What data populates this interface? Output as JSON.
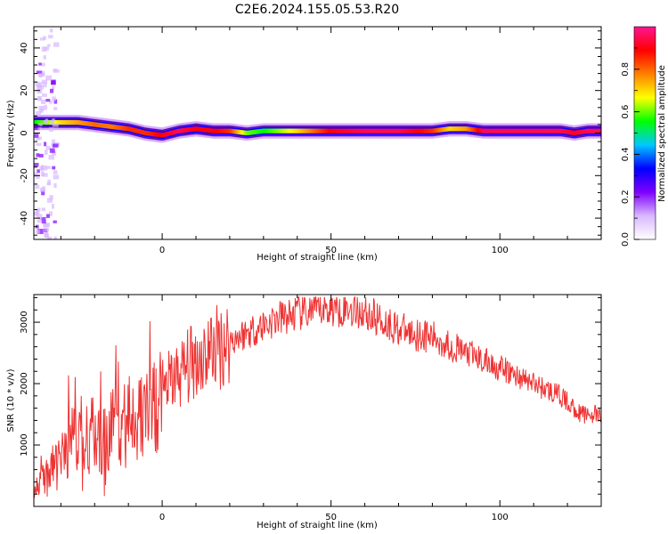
{
  "title": "C2E6.2024.155.05.53.R20",
  "colorbar": {
    "label": "Normalized spectral amplitude",
    "ticks": [
      "0.0",
      "0.2",
      "0.4",
      "0.6",
      "0.8"
    ],
    "tick_values": [
      0.0,
      0.2,
      0.4,
      0.6,
      0.8
    ],
    "range": [
      0,
      1
    ],
    "colors": [
      "#ffffff",
      "#d9b8ff",
      "#7f00ff",
      "#0000ff",
      "#00c8ff",
      "#00ff00",
      "#ffff00",
      "#ff7f00",
      "#ff0000",
      "#ff1493"
    ]
  },
  "chart_data": [
    {
      "type": "heatmap",
      "xlabel": "Height of straight line (km)",
      "ylabel": "Frequency (Hz)",
      "xlim": [
        -38,
        130
      ],
      "ylim": [
        -50,
        50
      ],
      "xticks": [
        0,
        50,
        100
      ],
      "yticks": [
        -40,
        -20,
        0,
        20,
        40
      ],
      "ridge": {
        "x": [
          -38,
          -30,
          -25,
          -20,
          -15,
          -10,
          -5,
          0,
          5,
          10,
          15,
          20,
          25,
          30,
          40,
          50,
          60,
          70,
          80,
          85,
          90,
          95,
          100,
          110,
          118,
          122,
          126,
          130
        ],
        "frequency": [
          5,
          5,
          5,
          4,
          3,
          2,
          0,
          -1,
          1,
          2,
          1,
          1,
          0,
          1,
          1,
          1,
          1,
          1,
          1,
          2,
          2,
          1,
          1,
          1,
          1,
          0,
          1,
          1
        ],
        "amplitude": [
          0.55,
          0.7,
          0.75,
          0.8,
          0.78,
          0.85,
          0.85,
          0.9,
          0.95,
          0.9,
          0.9,
          0.85,
          0.6,
          0.55,
          0.7,
          0.9,
          0.95,
          0.95,
          0.85,
          0.7,
          0.75,
          0.95,
          0.95,
          0.95,
          0.95,
          0.9,
          0.95,
          0.95
        ]
      }
    },
    {
      "type": "line",
      "xlabel": "Height of straight line (km)",
      "ylabel": "SNR (10 * v/v)",
      "xlim": [
        -38,
        130
      ],
      "ylim": [
        0,
        3450
      ],
      "xticks": [
        0,
        50,
        100
      ],
      "yticks": [
        1000,
        2000,
        3000
      ],
      "color": "#ee3333",
      "x": [
        -38,
        -34,
        -32,
        -30,
        -28,
        -26,
        -24,
        -22,
        -20,
        -18,
        -16,
        -14,
        -12,
        -10,
        -8,
        -6,
        -4,
        -2,
        0,
        2,
        4,
        6,
        8,
        10,
        12,
        14,
        16,
        18,
        20,
        22,
        24,
        26,
        28,
        30,
        32,
        34,
        36,
        38,
        40,
        42,
        44,
        46,
        48,
        50,
        52,
        54,
        56,
        58,
        60,
        62,
        64,
        66,
        68,
        70,
        72,
        74,
        76,
        78,
        80,
        82,
        84,
        86,
        88,
        90,
        92,
        94,
        96,
        98,
        100,
        102,
        104,
        106,
        108,
        110,
        112,
        114,
        116,
        118,
        120,
        122,
        124,
        126,
        128,
        130
      ],
      "y": [
        300,
        500,
        700,
        900,
        1000,
        1100,
        1000,
        1100,
        1200,
        1000,
        1150,
        1300,
        1250,
        1400,
        1500,
        1450,
        1600,
        1750,
        1900,
        2000,
        2100,
        2200,
        2300,
        2400,
        2450,
        2550,
        2600,
        2650,
        2700,
        2750,
        2800,
        2850,
        2900,
        2950,
        3000,
        3050,
        3080,
        3100,
        3150,
        3150,
        3180,
        3200,
        3220,
        3220,
        3230,
        3240,
        3220,
        3200,
        3150,
        3100,
        3050,
        3000,
        2950,
        2900,
        2850,
        2820,
        2800,
        2780,
        2750,
        2700,
        2650,
        2600,
        2550,
        2500,
        2450,
        2400,
        2350,
        2300,
        2250,
        2200,
        2150,
        2100,
        2050,
        2000,
        1950,
        1900,
        1850,
        1800,
        1700,
        1600,
        1500,
        1500,
        1500,
        1450
      ]
    }
  ]
}
